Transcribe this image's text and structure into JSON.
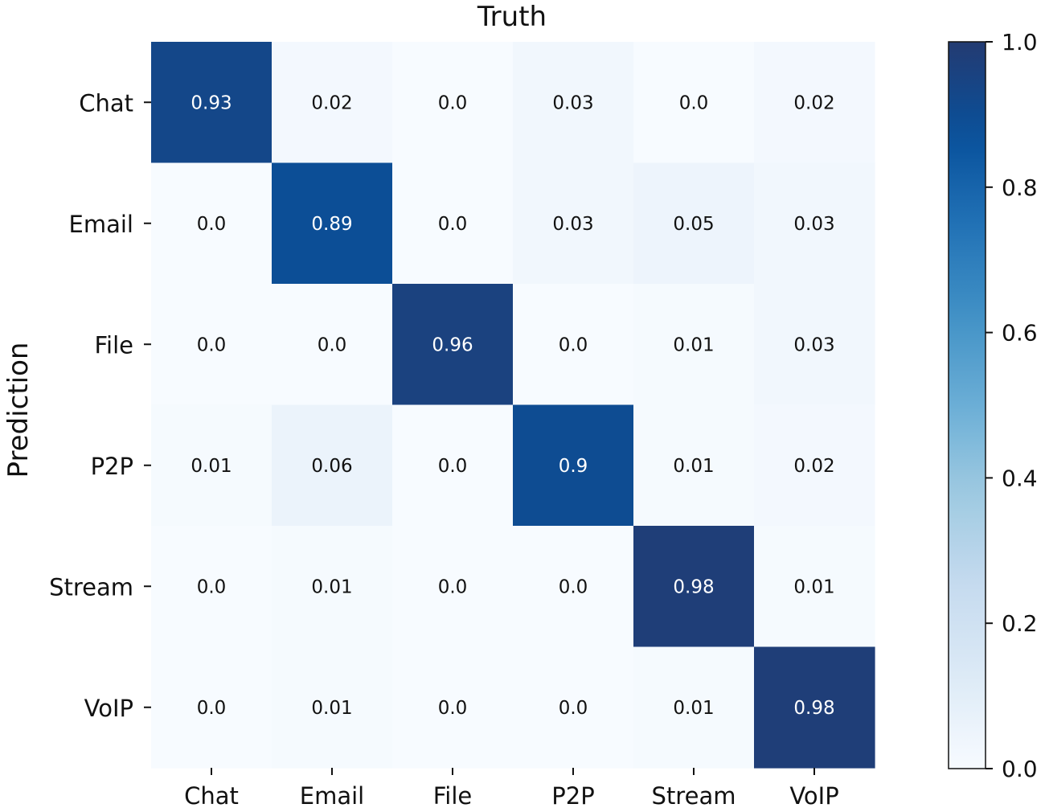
{
  "chart_data": {
    "type": "heatmap",
    "title": "Truth",
    "xlabel": "",
    "ylabel": "Prediction",
    "x_categories": [
      "Chat",
      "Email",
      "File",
      "P2P",
      "Stream",
      "VoIP"
    ],
    "y_categories": [
      "Chat",
      "Email",
      "File",
      "P2P",
      "Stream",
      "VoIP"
    ],
    "values": [
      [
        0.93,
        0.02,
        0.0,
        0.03,
        0.0,
        0.02
      ],
      [
        0.0,
        0.89,
        0.0,
        0.03,
        0.05,
        0.03
      ],
      [
        0.0,
        0.0,
        0.96,
        0.0,
        0.01,
        0.03
      ],
      [
        0.01,
        0.06,
        0.0,
        0.9,
        0.01,
        0.02
      ],
      [
        0.0,
        0.01,
        0.0,
        0.0,
        0.98,
        0.01
      ],
      [
        0.0,
        0.01,
        0.0,
        0.0,
        0.01,
        0.98
      ]
    ],
    "value_labels": [
      [
        "0.93",
        "0.02",
        "0.0",
        "0.03",
        "0.0",
        "0.02"
      ],
      [
        "0.0",
        "0.89",
        "0.0",
        "0.03",
        "0.05",
        "0.03"
      ],
      [
        "0.0",
        "0.0",
        "0.96",
        "0.0",
        "0.01",
        "0.03"
      ],
      [
        "0.01",
        "0.06",
        "0.0",
        "0.9",
        "0.01",
        "0.02"
      ],
      [
        "0.0",
        "0.01",
        "0.0",
        "0.0",
        "0.98",
        "0.01"
      ],
      [
        "0.0",
        "0.01",
        "0.0",
        "0.0",
        "0.01",
        "0.98"
      ]
    ],
    "colorbar": {
      "range": [
        0.0,
        1.0
      ],
      "ticks": [
        0.0,
        0.2,
        0.4,
        0.6,
        0.8,
        1.0
      ],
      "tick_labels": [
        "0.0",
        "0.2",
        "0.4",
        "0.6",
        "0.8",
        "1.0"
      ],
      "placement": "right"
    },
    "colormap": "Blues",
    "colors": {
      "low": "#f7fbff",
      "high": "#233b72",
      "text_dark": "#111111",
      "text_light": "#ffffff"
    }
  }
}
